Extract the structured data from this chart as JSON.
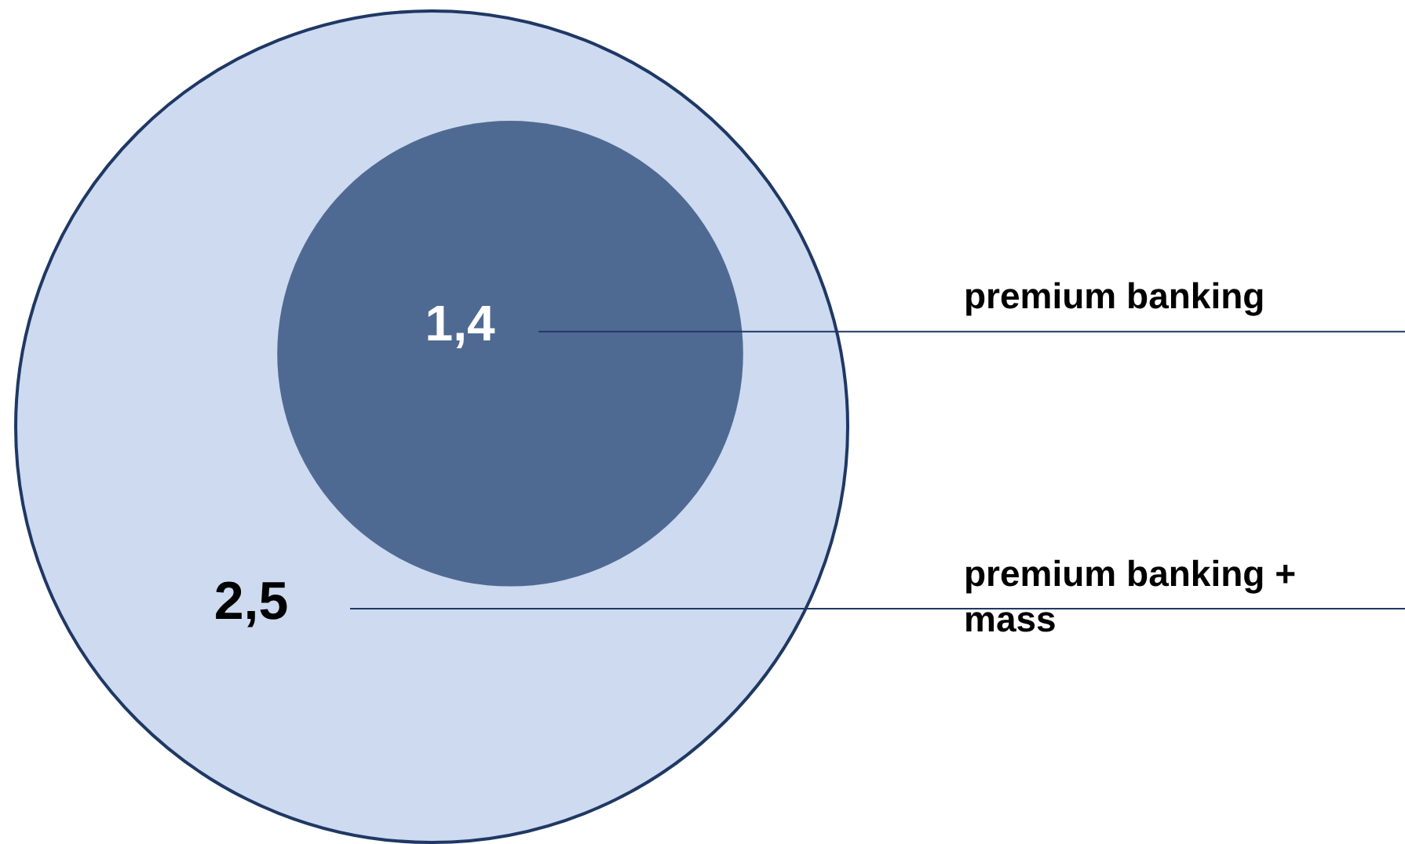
{
  "chart_data": {
    "type": "other",
    "categories": [
      "premium banking",
      "premium banking + mass"
    ],
    "values": [
      1.4,
      2.5
    ],
    "value_labels": [
      "1,4",
      "2,5"
    ],
    "colors": [
      "#4f6a92",
      "#cddaf0"
    ]
  }
}
